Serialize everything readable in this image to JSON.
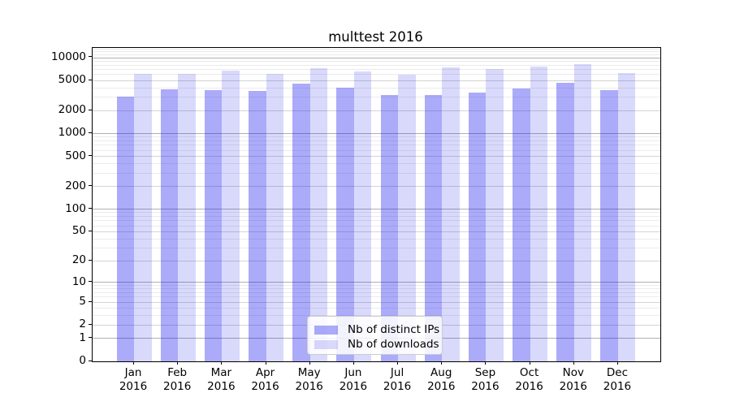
{
  "title": "multtest 2016",
  "colors": {
    "bar_composite_distinct_ips": "#ABABF9",
    "bar_composite_downloads": "#DADAFC",
    "grid_major": "#b0b0b0",
    "grid_mid": "#d4d4d4",
    "grid_minor": "#ebebeb",
    "spine": "#000000",
    "text": "#000000",
    "legend_border": "#cccccc",
    "legend_background": "#ffffff"
  },
  "chart_data": {
    "type": "bar",
    "title": "multtest 2016",
    "categories": [
      "Jan 2016",
      "Feb 2016",
      "Mar 2016",
      "Apr 2016",
      "May 2016",
      "Jun 2016",
      "Jul 2016",
      "Aug 2016",
      "Sep 2016",
      "Oct 2016",
      "Nov 2016",
      "Dec 2016"
    ],
    "month_labels": [
      "Jan",
      "Feb",
      "Mar",
      "Apr",
      "May",
      "Jun",
      "Jul",
      "Aug",
      "Sep",
      "Oct",
      "Nov",
      "Dec"
    ],
    "year_label": "2016",
    "series": [
      {
        "name": "Nb of distinct IPs",
        "color": "#ABABF9",
        "base_rgb": [
          15,
          15,
          238
        ],
        "alpha": 0.35,
        "values": [
          3100,
          3800,
          3750,
          3600,
          4500,
          4000,
          3200,
          3200,
          3500,
          3900,
          4700,
          3700
        ]
      },
      {
        "name": "Nb of downloads",
        "color": "#DADAFC",
        "base_rgb": [
          15,
          15,
          238
        ],
        "alpha": 0.155,
        "values": [
          6100,
          6150,
          6800,
          6150,
          7200,
          6600,
          6000,
          7450,
          7000,
          7600,
          8300,
          6200
        ]
      }
    ],
    "xlabel": "",
    "ylabel": "",
    "yscale": "log10(1+v)",
    "yticks": [
      10000,
      5000,
      2000,
      1000,
      500,
      200,
      100,
      50,
      20,
      10,
      5,
      2,
      1,
      0
    ],
    "ylim": [
      0,
      13435
    ],
    "grid": true,
    "legend_position": "lower center"
  }
}
